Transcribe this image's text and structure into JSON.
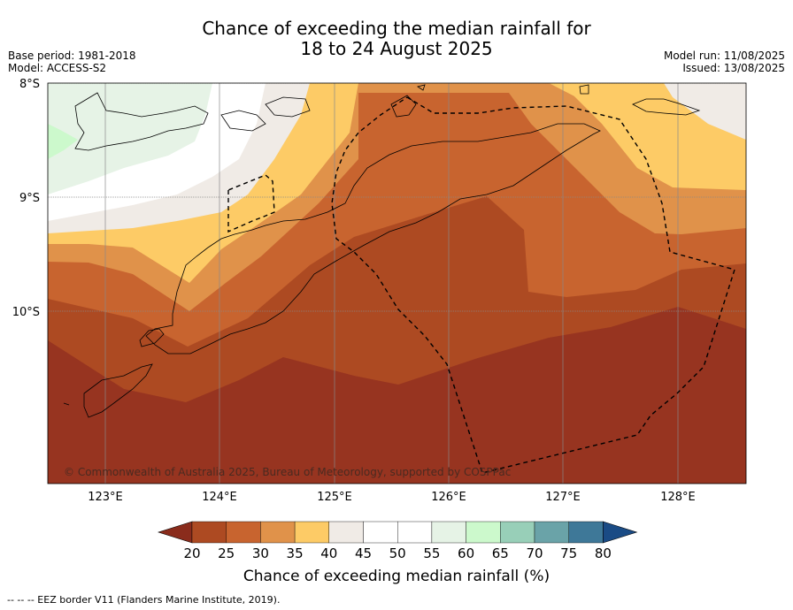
{
  "title_line1": "Chance of exceeding the median rainfall for",
  "title_line2": "18 to 24 August 2025",
  "base_period": "Base period: 1981-2018",
  "model": "Model: ACCESS-S2",
  "model_run": "Model run: 11/08/2025",
  "issued": "Issued: 13/08/2025",
  "copyright": "© Commonwealth of Australia 2025, Bureau of Meteorology, supported by COSPPac",
  "lat_labels": [
    "8°S",
    "9°S",
    "10°S"
  ],
  "lon_labels": [
    "123°E",
    "124°E",
    "125°E",
    "126°E",
    "127°E",
    "128°E"
  ],
  "colorbar": {
    "ticks": [
      "20",
      "25",
      "30",
      "35",
      "40",
      "45",
      "50",
      "55",
      "60",
      "65",
      "70",
      "75",
      "80"
    ],
    "colors": [
      "#8a2c1c",
      "#ad4a22",
      "#c8642f",
      "#e0924a",
      "#fdcb66",
      "#f0ebe6",
      "#ffffff",
      "#ffffff",
      "#e6f3e6",
      "#ccf9cc",
      "#98cfb8",
      "#6aa3a8",
      "#3e7898",
      "#1a4b85"
    ],
    "label": "Chance of exceeding median rainfall (%)"
  },
  "footer": "--  --  -- EEZ border V11 (Flanders Marine Institute, 2019)."
}
